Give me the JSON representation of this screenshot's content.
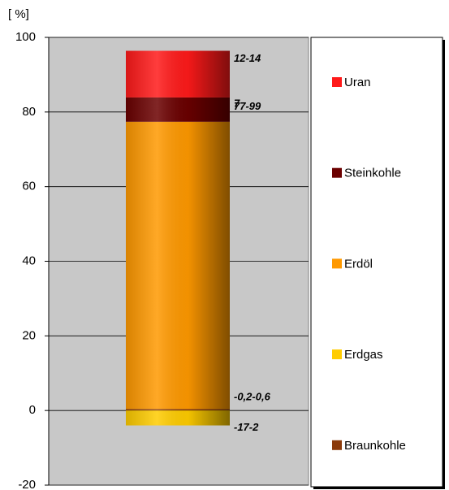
{
  "chart_data": {
    "type": "stacked_bar",
    "y_label": "[ %]",
    "categories": [
      null
    ],
    "series": [
      {
        "name": "Braunkohle",
        "color": "#8b3a0a",
        "values": [
          0.4
        ],
        "value_labels": [
          "-0,2-0,6"
        ]
      },
      {
        "name": "Erdgas",
        "color": "#ffcc00",
        "values": [
          -4
        ],
        "value_labels": [
          "-17-2"
        ]
      },
      {
        "name": "Erdöl",
        "color": "#ff9900",
        "values": [
          77
        ],
        "value_labels": [
          "77-99"
        ]
      },
      {
        "name": "Steinkohle",
        "color": "#6b0000",
        "values": [
          6.5
        ],
        "value_labels": [
          "7"
        ]
      },
      {
        "name": "Uran",
        "color": "#ff1a1a",
        "values": [
          12.5
        ],
        "value_labels": [
          "12-14"
        ]
      }
    ],
    "ylim": [
      -20,
      100
    ],
    "yticks": [
      -20,
      0,
      20,
      40,
      60,
      80,
      100
    ],
    "grid": true
  }
}
